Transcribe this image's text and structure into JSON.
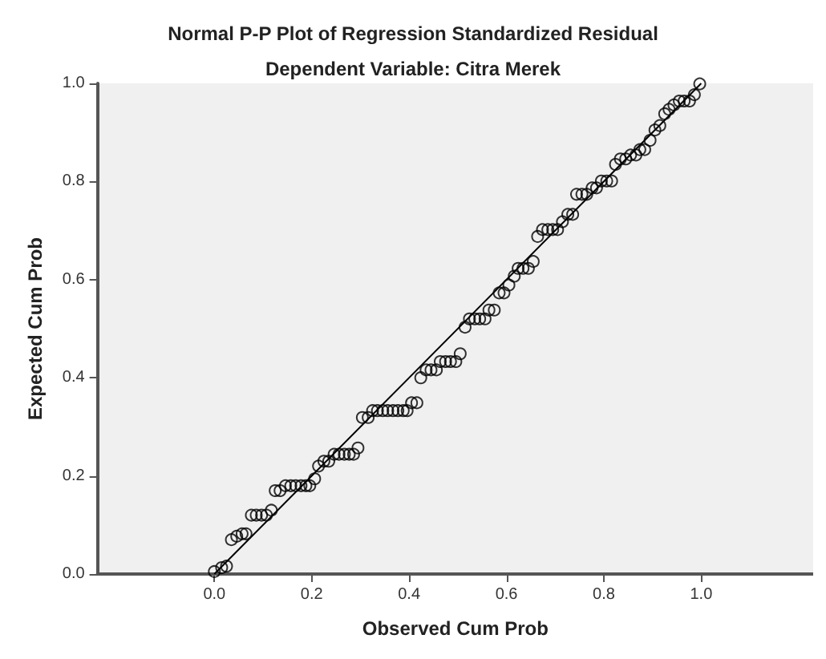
{
  "chart_data": {
    "type": "scatter",
    "title": "Normal P-P Plot of Regression Standardized Residual",
    "subtitle": "Dependent Variable: Citra Merek",
    "xlabel": "Observed Cum Prob",
    "ylabel": "Expected Cum Prob",
    "xlim": [
      -0.24,
      1.23
    ],
    "ylim": [
      0,
      1
    ],
    "xticks": [
      {
        "value": 0,
        "label": "0.0"
      },
      0.2,
      0.4,
      0.6,
      0.8,
      {
        "value": 1,
        "label": "1.0"
      }
    ],
    "yticks": [
      {
        "value": 0,
        "label": "0.0"
      },
      0.2,
      0.4,
      0.6,
      0.8,
      {
        "value": 1,
        "label": "1.0"
      }
    ],
    "grid": false,
    "series": [
      {
        "marker": "circle",
        "color": "#000000",
        "x": [
          0.0,
          0.015,
          0.025,
          0.035,
          0.046,
          0.057,
          0.065,
          0.076,
          0.086,
          0.097,
          0.107,
          0.117,
          0.125,
          0.135,
          0.146,
          0.157,
          0.167,
          0.178,
          0.188,
          0.196,
          0.206,
          0.214,
          0.225,
          0.235,
          0.246,
          0.256,
          0.267,
          0.277,
          0.286,
          0.295,
          0.304,
          0.316,
          0.325,
          0.335,
          0.346,
          0.356,
          0.367,
          0.377,
          0.388,
          0.396,
          0.405,
          0.416,
          0.424,
          0.435,
          0.445,
          0.456,
          0.464,
          0.475,
          0.485,
          0.496,
          0.505,
          0.515,
          0.524,
          0.535,
          0.545,
          0.556,
          0.564,
          0.575,
          0.585,
          0.595,
          0.605,
          0.616,
          0.624,
          0.634,
          0.645,
          0.655,
          0.664,
          0.674,
          0.685,
          0.695,
          0.705,
          0.715,
          0.726,
          0.736,
          0.744,
          0.755,
          0.765,
          0.776,
          0.785,
          0.795,
          0.806,
          0.816,
          0.824,
          0.834,
          0.845,
          0.855,
          0.866,
          0.874,
          0.884,
          0.895,
          0.905,
          0.915,
          0.925,
          0.934,
          0.944,
          0.955,
          0.965,
          0.976,
          0.986,
          0.997
        ],
        "values": [
          0.005,
          0.013,
          0.016,
          0.07,
          0.077,
          0.082,
          0.082,
          0.12,
          0.12,
          0.12,
          0.12,
          0.13,
          0.17,
          0.17,
          0.18,
          0.18,
          0.18,
          0.18,
          0.18,
          0.18,
          0.194,
          0.22,
          0.23,
          0.23,
          0.244,
          0.244,
          0.244,
          0.244,
          0.244,
          0.257,
          0.319,
          0.319,
          0.333,
          0.333,
          0.333,
          0.333,
          0.333,
          0.333,
          0.333,
          0.333,
          0.349,
          0.349,
          0.4,
          0.416,
          0.416,
          0.416,
          0.433,
          0.433,
          0.433,
          0.433,
          0.449,
          0.503,
          0.52,
          0.52,
          0.52,
          0.52,
          0.538,
          0.538,
          0.573,
          0.573,
          0.589,
          0.607,
          0.623,
          0.623,
          0.623,
          0.637,
          0.688,
          0.702,
          0.702,
          0.702,
          0.702,
          0.718,
          0.733,
          0.733,
          0.774,
          0.774,
          0.774,
          0.787,
          0.787,
          0.801,
          0.801,
          0.801,
          0.835,
          0.846,
          0.846,
          0.854,
          0.854,
          0.865,
          0.865,
          0.884,
          0.905,
          0.914,
          0.938,
          0.947,
          0.956,
          0.964,
          0.964,
          0.964,
          0.977,
          0.999
        ]
      },
      {
        "type": "line",
        "color": "#000000",
        "x": [
          0,
          1
        ],
        "values": [
          0,
          1
        ],
        "line_style": "solid",
        "marker": "none"
      }
    ]
  }
}
